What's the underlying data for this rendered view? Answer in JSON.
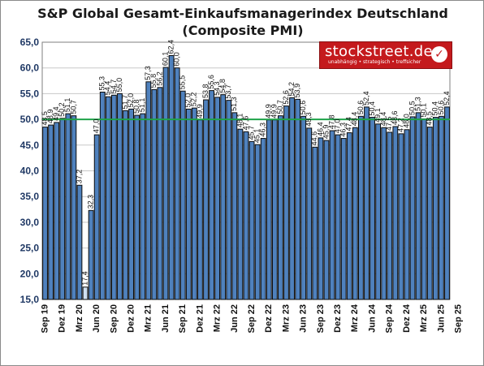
{
  "chart_data": {
    "type": "bar",
    "title": "S&P Global Gesamt-Einkaufsmanagerindex Deutschland",
    "subtitle": "(Composite PMI)",
    "ylim": [
      15,
      65
    ],
    "yticks": [
      "15,0",
      "20,0",
      "25,0",
      "30,0",
      "35,0",
      "40,0",
      "45,0",
      "50,0",
      "55,0",
      "60,0",
      "65,0"
    ],
    "xtick_labels": [
      "Sep 19",
      "Dez 19",
      "Mrz 20",
      "Jun 20",
      "Sep 20",
      "Dez 20",
      "Mrz 21",
      "Jun 21",
      "Sep 21",
      "Dez 21",
      "Mrz 22",
      "Jun 22",
      "Sep 22",
      "Dez 22",
      "Mrz 23",
      "Jun 23",
      "Sep 23",
      "Dez 23",
      "Mrz 24",
      "Jun 24",
      "Sep 24",
      "Dez 24",
      "Mrz 25",
      "Jun 25",
      "Sep 25"
    ],
    "reference_line": 50,
    "grid": true,
    "values": [
      48.5,
      48.9,
      49.4,
      50.2,
      51.1,
      50.7,
      37.2,
      17.4,
      32.3,
      47.0,
      55.3,
      54.4,
      54.7,
      55.0,
      51.7,
      52.0,
      50.8,
      51.1,
      57.3,
      55.8,
      56.2,
      60.1,
      62.4,
      60.0,
      55.5,
      52.0,
      52.2,
      49.9,
      53.8,
      55.6,
      54.3,
      54.8,
      53.7,
      51.3,
      48.1,
      47.6,
      45.7,
      45.1,
      46.3,
      49.9,
      49.9,
      50.7,
      52.6,
      54.2,
      53.9,
      50.6,
      48.3,
      44.6,
      46.4,
      45.9,
      47.8,
      47.0,
      46.3,
      47.4,
      48.4,
      50.6,
      52.4,
      50.4,
      49.1,
      48.4,
      47.5,
      48.6,
      47.2,
      48.0,
      50.5,
      51.3,
      50.1,
      48.5,
      50.4,
      50.6,
      52.4
    ],
    "data_labels": [
      "48,5",
      "48,9",
      "49,4",
      "50,2",
      "51,1",
      "50,7",
      "37,2",
      "17,4",
      "32,3",
      "47,0",
      "55,3",
      "54,4",
      "54,7",
      "55,0",
      "51,7",
      "52,0",
      "50,8",
      "51,1",
      "57,3",
      "55,8",
      "56,2",
      "60,1",
      "62,4",
      "60,0",
      "55,5",
      "52,0",
      "52,2",
      "49,9",
      "53,8",
      "55,6",
      "54,3",
      "54,8",
      "53,7",
      "51,3",
      "48,1",
      "47,6",
      "45,7",
      "45,1",
      "46,3",
      "49,9",
      "49,9",
      "50,7",
      "52,6",
      "54,2",
      "53,9",
      "50,6",
      "48,3",
      "44,6",
      "46,4",
      "45,9",
      "47,8",
      "47,0",
      "46,3",
      "47,4",
      "48,4",
      "50,6",
      "52,4",
      "50,4",
      "49,1",
      "48,4",
      "47,5",
      "48,6",
      "47,2",
      "48,0",
      "50,5",
      "51,3",
      "50,1",
      "48,5",
      "50,4",
      "50,6",
      "52,4"
    ],
    "colors": {
      "bar": "#4f81bd",
      "bar_light": "#cfdff1",
      "bar_outline": "#0b0b0b",
      "reference_line": "#1fa349",
      "grid": "#c8c8c8",
      "axis_text": "#1f3864"
    }
  },
  "logo": {
    "name": "stockstreet.de",
    "tagline": "unabhängig • strategisch • treffsicher"
  }
}
